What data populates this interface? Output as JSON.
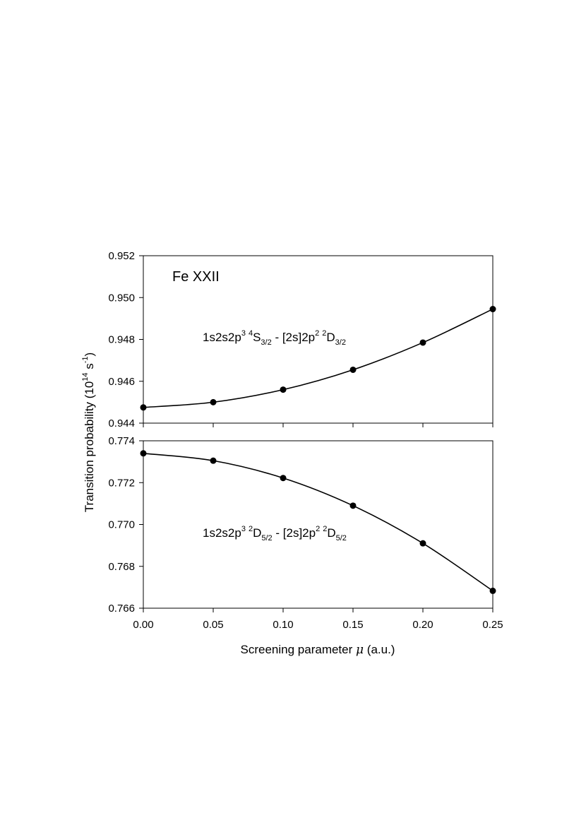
{
  "chart_data": [
    {
      "type": "line",
      "panel": "top",
      "species": "Fe XXII",
      "transition": {
        "lower": "1s2s2p",
        "lower_sup": "3",
        "term_sup": "4",
        "term": "S",
        "term_sub": "3/2",
        "sep": " - ",
        "upper": "[2s]2p",
        "upper_sup": "2",
        "uterm_sup": "2",
        "uterm": "D",
        "uterm_sub": "3/2"
      },
      "x": [
        0.0,
        0.05,
        0.1,
        0.15,
        0.2,
        0.25
      ],
      "series": [
        {
          "values": [
            0.94475,
            0.945,
            0.9456,
            0.94655,
            0.94785,
            0.94945
          ]
        }
      ],
      "xlim": [
        0.0,
        0.25
      ],
      "ylim": [
        0.944,
        0.952
      ],
      "yticks": [
        "0.944",
        "0.946",
        "0.948",
        "0.950",
        "0.952"
      ],
      "yticks_values": [
        0.944,
        0.946,
        0.948,
        0.95,
        0.952
      ],
      "grid": false
    },
    {
      "type": "line",
      "panel": "bottom",
      "transition": {
        "lower": "1s2s2p",
        "lower_sup": "3",
        "term_sup": "2",
        "term": "D",
        "term_sub": "5/2",
        "sep": " - ",
        "upper": "[2s]2p",
        "upper_sup": "2",
        "uterm_sup": "2",
        "uterm": "D",
        "uterm_sub": "5/2"
      },
      "x": [
        0.0,
        0.05,
        0.1,
        0.15,
        0.2,
        0.25
      ],
      "series": [
        {
          "values": [
            0.7734,
            0.77305,
            0.77222,
            0.7709,
            0.7691,
            0.76683
          ]
        }
      ],
      "xlim": [
        0.0,
        0.25
      ],
      "ylim": [
        0.766,
        0.774
      ],
      "yticks": [
        "0.766",
        "0.768",
        "0.770",
        "0.772",
        "0.774"
      ],
      "yticks_values": [
        0.766,
        0.768,
        0.77,
        0.772,
        0.774
      ],
      "xticks": [
        "0.00",
        "0.05",
        "0.10",
        "0.15",
        "0.20",
        "0.25"
      ],
      "xticks_values": [
        0.0,
        0.05,
        0.1,
        0.15,
        0.2,
        0.25
      ],
      "grid": false
    }
  ],
  "axes": {
    "ylabel_main": "Transition probability (10",
    "ylabel_exp1": "14",
    "ylabel_mid": " s",
    "ylabel_exp2": "-1",
    "ylabel_end": ")",
    "xlabel_main": "Screening parameter ",
    "xlabel_symbol": "μ",
    "xlabel_end": " (a.u.)"
  }
}
